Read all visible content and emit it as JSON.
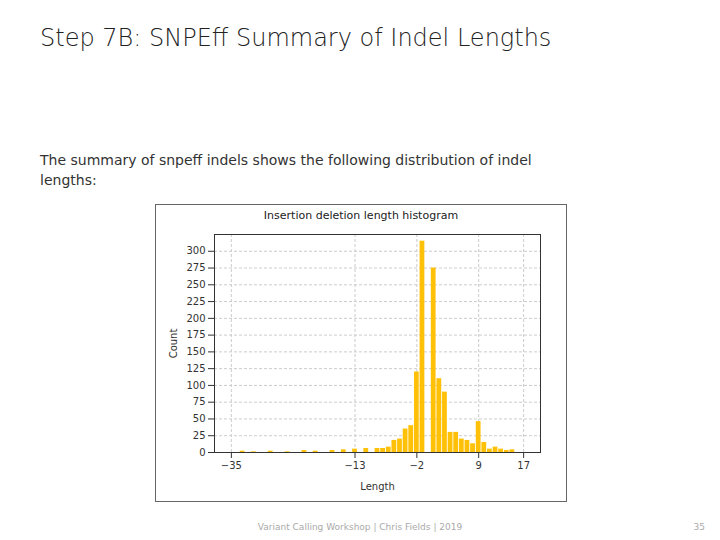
{
  "title": "Step 7B: SNPEff Summary of Indel Lengths",
  "text": [
    "The summary of snpeff indels shows the following distribution of indel",
    "lengths:"
  ],
  "footer": [
    "Variant Calling Workshop | Chris Fields | 2019",
    "35"
  ],
  "chart_data": {
    "type": "bar",
    "title": "Insertion deletion length histogram",
    "xlabel": "Length",
    "ylabel": "Count",
    "x": [
      -33,
      -31,
      -28,
      -25,
      -22,
      -20,
      -17,
      -15,
      -13,
      -11,
      -9,
      -8,
      -7,
      -6,
      -5,
      -4,
      -3,
      -2,
      -1,
      1,
      2,
      3,
      4,
      5,
      6,
      7,
      8,
      9,
      10,
      11,
      12,
      13,
      14,
      15
    ],
    "values": [
      2,
      1,
      2,
      1,
      3,
      2,
      3,
      4,
      5,
      6,
      6,
      6,
      8,
      18,
      20,
      35,
      40,
      120,
      315,
      275,
      110,
      90,
      30,
      30,
      20,
      18,
      13,
      46,
      15,
      5,
      8,
      5,
      3,
      4
    ],
    "color": "#FFC107",
    "xlim": [
      -38,
      20
    ],
    "xticks": [
      -35,
      -13,
      -2,
      9,
      17
    ],
    "ylim": [
      0,
      325
    ],
    "yticks": [
      0,
      25,
      50,
      75,
      100,
      125,
      150,
      175,
      200,
      225,
      250,
      275,
      300
    ],
    "grid": true
  }
}
